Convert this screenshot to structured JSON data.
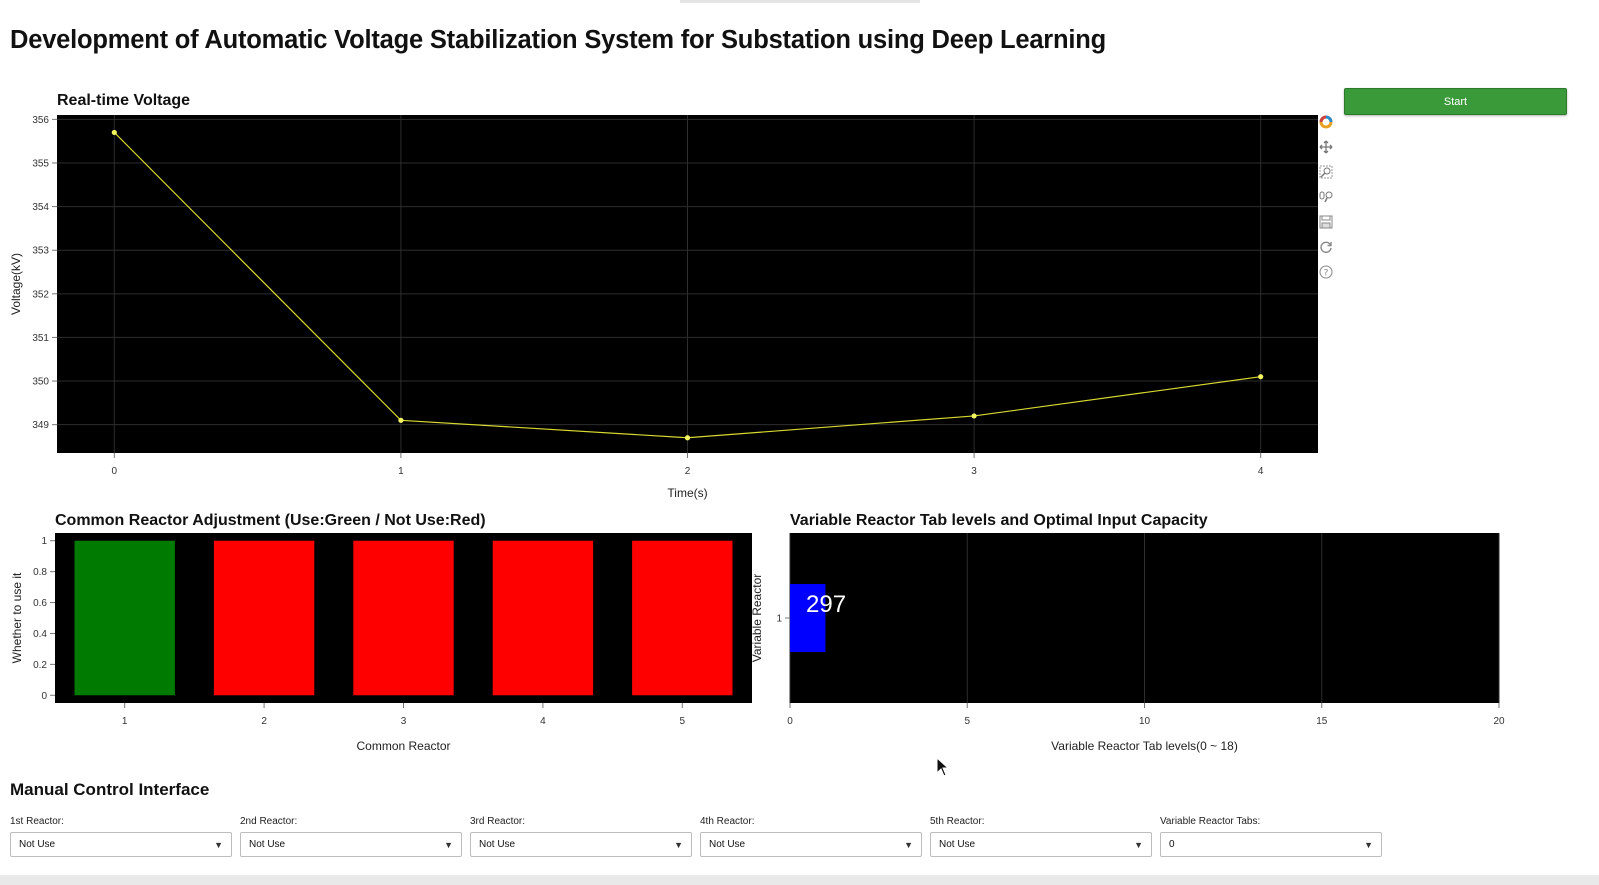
{
  "page_title": "Development of Automatic Voltage Stabilization System for Substation using Deep Learning",
  "start_button": "Start",
  "toolbar": [
    "bokeh-logo-icon",
    "pan-icon",
    "box-zoom-icon",
    "wheel-zoom-icon",
    "save-icon",
    "reset-icon",
    "help-icon"
  ],
  "colors": {
    "voltage_line": "#d8d830",
    "in_use": "#007a00",
    "not_use": "#ff0000",
    "variable_bar": "#0000ff",
    "start_button": "#3a9a3a"
  },
  "chart_data": [
    {
      "type": "line",
      "title": "Real-time Voltage",
      "xlabel": "Time(s)",
      "ylabel": "Voltage(kV)",
      "x": [
        0,
        1,
        2,
        3,
        4
      ],
      "y": [
        355.7,
        349.1,
        348.7,
        349.2,
        350.1
      ],
      "xlim": [
        -0.2,
        4.2
      ],
      "ylim": [
        348.35,
        356.1
      ],
      "xticks": [
        "0",
        "1",
        "2",
        "3",
        "4"
      ],
      "yticks": [
        "349",
        "350",
        "351",
        "352",
        "353",
        "354",
        "355",
        "356"
      ],
      "grid": true
    },
    {
      "type": "bar",
      "title": "Common Reactor Adjustment (Use:Green / Not Use:Red)",
      "xlabel": "Common Reactor",
      "ylabel": "Whether to use it",
      "categories": [
        "1",
        "2",
        "3",
        "4",
        "5"
      ],
      "values": [
        1,
        1,
        1,
        1,
        1
      ],
      "bar_colors": [
        "#007a00",
        "#ff0000",
        "#ff0000",
        "#ff0000",
        "#ff0000"
      ],
      "ylim": [
        -0.05,
        1.05
      ],
      "yticks": [
        "0",
        "0.2",
        "0.4",
        "0.6",
        "0.8",
        "1"
      ],
      "grid": false
    },
    {
      "type": "bar",
      "orientation": "horizontal",
      "title": "Variable Reactor Tab levels and Optimal Input Capacity",
      "xlabel": "Variable Reactor Tab levels(0 ~ 18)",
      "ylabel": "Variable Reactor",
      "categories": [
        "1"
      ],
      "values": [
        1
      ],
      "data_label": "297",
      "xlim": [
        0,
        20
      ],
      "xticks": [
        "0",
        "5",
        "10",
        "15",
        "20"
      ],
      "grid": true
    }
  ],
  "manual_control": {
    "title": "Manual Control Interface",
    "controls": [
      {
        "label": "1st Reactor:",
        "value": "Not Use"
      },
      {
        "label": "2nd Reactor:",
        "value": "Not Use"
      },
      {
        "label": "3rd Reactor:",
        "value": "Not Use"
      },
      {
        "label": "4th Reactor:",
        "value": "Not Use"
      },
      {
        "label": "5th Reactor:",
        "value": "Not Use"
      },
      {
        "label": "Variable Reactor Tabs:",
        "value": "0"
      }
    ]
  }
}
